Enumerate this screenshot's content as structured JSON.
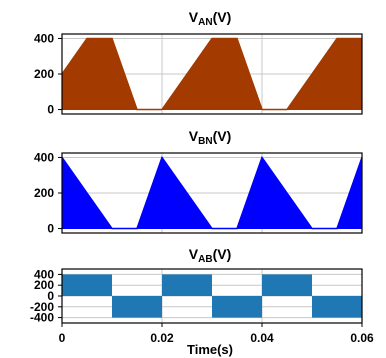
{
  "chart_data": [
    {
      "type": "line",
      "title_main": "V",
      "title_sub": "AN",
      "title_unit": "(V)",
      "ylim": [
        -25,
        425
      ],
      "yticks": [
        0,
        200,
        400
      ],
      "xlim": [
        0,
        0.06
      ],
      "color": "#a33a00",
      "grid": true,
      "series": [
        {
          "x": [
            0,
            0.005,
            0.01,
            0.015,
            0.02,
            0.025,
            0.03,
            0.035,
            0.04,
            0.045,
            0.05,
            0.055,
            0.06
          ],
          "values": [
            200,
            400,
            400,
            0,
            0,
            200,
            400,
            400,
            0,
            0,
            200,
            400,
            400
          ]
        }
      ]
    },
    {
      "type": "line",
      "title_main": "V",
      "title_sub": "BN",
      "title_unit": "(V)",
      "ylim": [
        -25,
        425
      ],
      "yticks": [
        0,
        200,
        400
      ],
      "xlim": [
        0,
        0.06
      ],
      "color": "#0000ff",
      "grid": true,
      "series": [
        {
          "x": [
            0,
            0.005,
            0.01,
            0.015,
            0.02,
            0.025,
            0.03,
            0.035,
            0.04,
            0.045,
            0.05,
            0.055,
            0.06
          ],
          "values": [
            400,
            200,
            0,
            0,
            400,
            200,
            0,
            0,
            400,
            200,
            0,
            0,
            400
          ]
        }
      ]
    },
    {
      "type": "area",
      "title_main": "V",
      "title_sub": "AB",
      "title_unit": "(V)",
      "ylim": [
        -500,
        500
      ],
      "yticks": [
        400,
        200,
        0,
        -200,
        -400
      ],
      "xticks": [
        0,
        0.02,
        0.04,
        0.06
      ],
      "xtick_labels": [
        "0",
        "0.02",
        "0.04",
        "0.06"
      ],
      "xlabel": "Time(s)",
      "xlim": [
        0,
        0.06
      ],
      "color": "#1f77b4",
      "grid": true,
      "series": [
        {
          "segments": [
            {
              "x0": 0,
              "x1": 0.01,
              "low": 0,
              "high": 400
            },
            {
              "x0": 0.01,
              "x1": 0.02,
              "low": -400,
              "high": 0
            },
            {
              "x0": 0.02,
              "x1": 0.03,
              "low": 0,
              "high": 400
            },
            {
              "x0": 0.03,
              "x1": 0.04,
              "low": -400,
              "high": 0
            },
            {
              "x0": 0.04,
              "x1": 0.05,
              "low": 0,
              "high": 400
            },
            {
              "x0": 0.05,
              "x1": 0.06,
              "low": -400,
              "high": 0
            }
          ]
        }
      ]
    }
  ]
}
